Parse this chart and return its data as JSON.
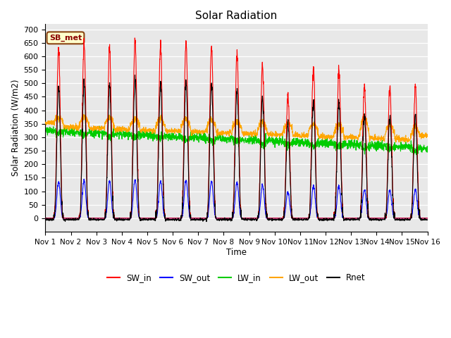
{
  "title": "Solar Radiation",
  "ylabel": "Solar Radiation (W/m2)",
  "xlabel": "Time",
  "ylim": [
    -50,
    720
  ],
  "yticks": [
    0,
    50,
    100,
    150,
    200,
    250,
    300,
    350,
    400,
    450,
    500,
    550,
    600,
    650,
    700
  ],
  "xtick_labels": [
    "Nov 1",
    "Nov 2",
    "Nov 3",
    "Nov 4",
    "Nov 5",
    "Nov 6",
    "Nov 7",
    "Nov 8",
    "Nov 9",
    "Nov 10",
    "Nov 11",
    "Nov 12",
    "Nov 13",
    "Nov 14",
    "Nov 15",
    "Nov 16"
  ],
  "annotation_text": "SB_met",
  "annotation_bg": "#FFFFCC",
  "annotation_border": "#8B4513",
  "bg_color": "#DCDCDC",
  "plot_bg": "#E8E8E8",
  "sw_in_color": "#FF0000",
  "sw_out_color": "#0000FF",
  "lw_in_color": "#00CC00",
  "lw_out_color": "#FFA500",
  "rnet_color": "#000000",
  "legend_labels": [
    "SW_in",
    "SW_out",
    "LW_in",
    "LW_out",
    "Rnet"
  ],
  "num_days": 15,
  "points_per_day": 144
}
